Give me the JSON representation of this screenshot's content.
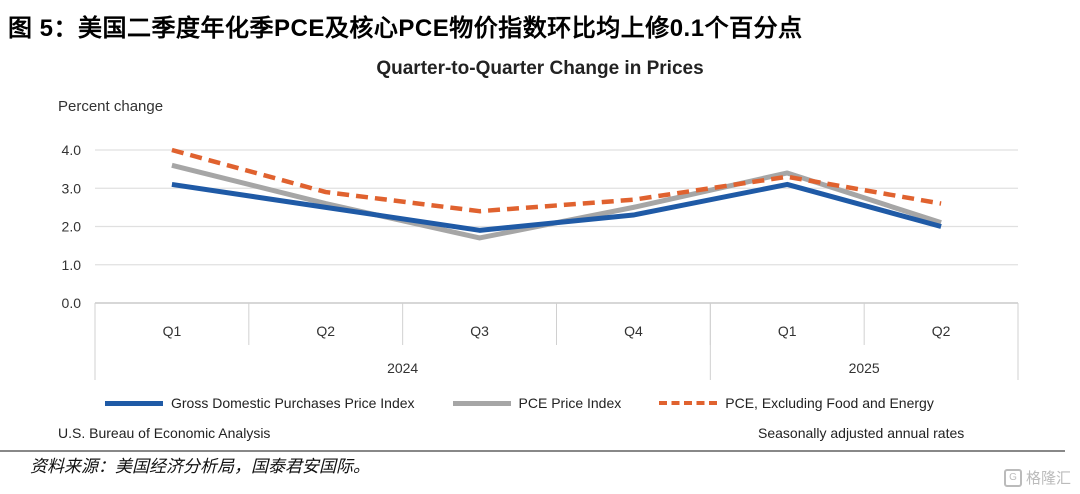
{
  "figure_title": "图 5：美国二季度年化季PCE及核心PCE物价指数环比均上修0.1个百分点",
  "chart_data": {
    "type": "line",
    "title": "Quarter-to-Quarter Change in Prices",
    "ylabel": "Percent change",
    "xlabel": "",
    "categories": [
      "Q1",
      "Q2",
      "Q3",
      "Q4",
      "Q1",
      "Q2"
    ],
    "groups": [
      {
        "label": "2024",
        "span": 4
      },
      {
        "label": "2025",
        "span": 2
      }
    ],
    "ylim": [
      0,
      4
    ],
    "yticks": [
      "0.0",
      "1.0",
      "2.0",
      "3.0",
      "4.0"
    ],
    "grid": true,
    "legend_position": "bottom",
    "series": [
      {
        "name": "Gross Domestic Purchases Price Index",
        "color": "#1f5aa6",
        "dash": false,
        "values": [
          3.1,
          2.5,
          1.9,
          2.3,
          3.1,
          2.0
        ]
      },
      {
        "name": "PCE Price Index",
        "color": "#a6a6a6",
        "dash": false,
        "values": [
          3.6,
          2.6,
          1.7,
          2.5,
          3.4,
          2.1
        ]
      },
      {
        "name": "PCE, Excluding Food and Energy",
        "color": "#e0622f",
        "dash": true,
        "values": [
          4.0,
          2.9,
          2.4,
          2.7,
          3.3,
          2.6
        ]
      }
    ]
  },
  "footer": {
    "left": "U.S. Bureau of Economic Analysis",
    "right": "Seasonally adjusted annual rates"
  },
  "source": "资料来源：美国经济分析局，国泰君安国际。",
  "watermark": "格隆汇"
}
